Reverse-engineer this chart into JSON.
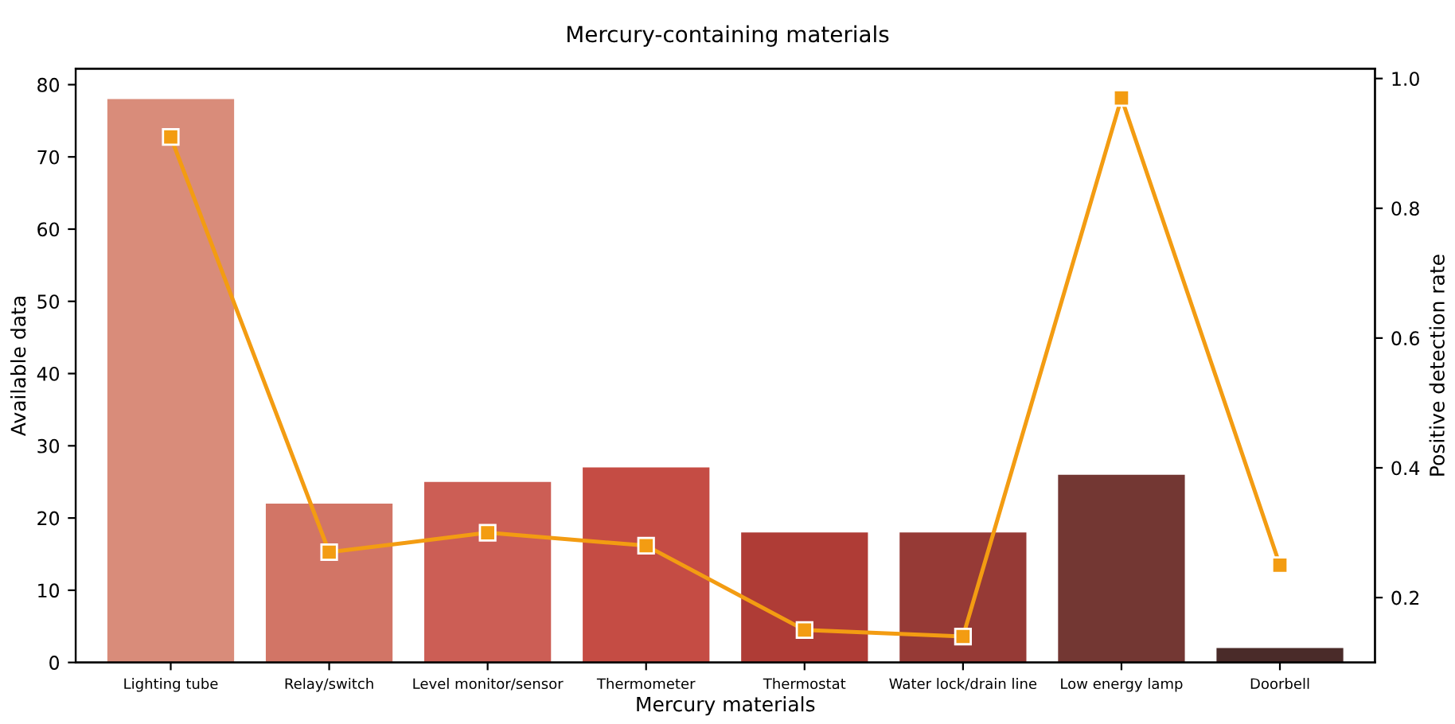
{
  "chart_data": {
    "type": "bar",
    "title": "Mercury-containing materials",
    "xlabel": "Mercury materials",
    "ylabel": "Available data",
    "y2label": "Positive detection rate",
    "categories": [
      "Lighting tube",
      "Relay/switch",
      "Level monitor/sensor",
      "Thermometer",
      "Thermostat",
      "Water lock/drain line",
      "Low energy lamp",
      "Doorbell"
    ],
    "ylim": [
      0,
      82.2
    ],
    "yticks": [
      0,
      10,
      20,
      30,
      40,
      50,
      60,
      70,
      80
    ],
    "y2lim": [
      0.1,
      1.015
    ],
    "y2ticks": [
      0.2,
      0.4,
      0.6,
      0.8,
      {
        "value": 1,
        "label": "1.0"
      }
    ],
    "grid": false,
    "legend": false,
    "series": [
      {
        "colors": [
          "#d98c7a",
          "#d27566",
          "#cc5e55",
          "#c54c44",
          "#af3c36",
          "#963a36",
          "#733733",
          "#4a2b29"
        ],
        "values": [
          78,
          22,
          25,
          27,
          18,
          18,
          26,
          2
        ]
      },
      {
        "type": "line",
        "axis": "y2",
        "color": "#f39c12",
        "marker": "square",
        "values": [
          0.91,
          0.27,
          0.3,
          0.28,
          0.15,
          0.14,
          0.97,
          0.25
        ]
      }
    ]
  }
}
